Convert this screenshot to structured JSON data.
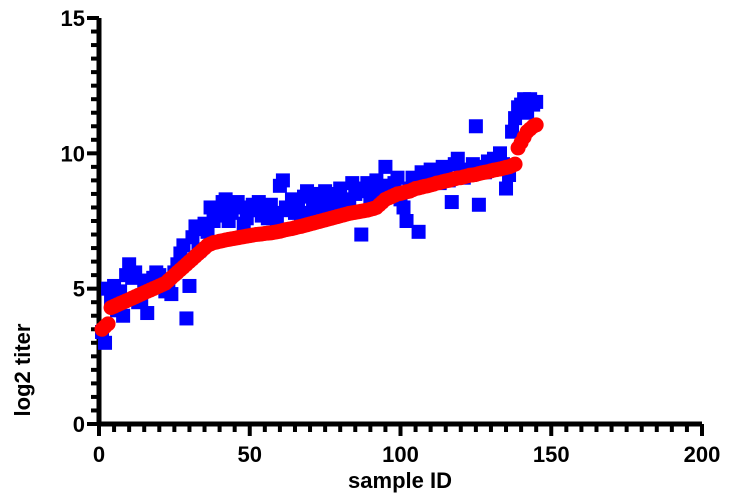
{
  "chart_data": {
    "type": "scatter",
    "title": "",
    "xlabel": "sample ID",
    "ylabel": "log2 titer",
    "xlim": [
      0,
      200
    ],
    "ylim": [
      0,
      15
    ],
    "x_ticks": [
      0,
      50,
      100,
      150,
      200
    ],
    "y_ticks": [
      0,
      5,
      10,
      15
    ],
    "x_tick_labels": [
      "0",
      "50",
      "100",
      "150",
      "200"
    ],
    "y_tick_labels": [
      "0",
      "5",
      "10",
      "15"
    ],
    "grid": false,
    "legend": "none",
    "series": [
      {
        "marker": "square",
        "color": "#0000ff",
        "x": [
          1,
          2,
          3,
          4,
          5,
          6,
          7,
          8,
          9,
          10,
          11,
          12,
          13,
          14,
          15,
          16,
          17,
          18,
          19,
          20,
          21,
          22,
          23,
          24,
          25,
          26,
          27,
          28,
          29,
          30,
          31,
          32,
          33,
          34,
          35,
          36,
          37,
          38,
          39,
          40,
          41,
          42,
          43,
          44,
          45,
          46,
          47,
          48,
          49,
          50,
          51,
          52,
          53,
          54,
          55,
          56,
          57,
          58,
          59,
          60,
          61,
          62,
          63,
          64,
          65,
          66,
          67,
          68,
          69,
          70,
          71,
          72,
          73,
          74,
          75,
          76,
          77,
          78,
          79,
          80,
          81,
          82,
          83,
          84,
          85,
          86,
          87,
          88,
          89,
          90,
          91,
          92,
          93,
          94,
          95,
          96,
          97,
          98,
          99,
          100,
          101,
          102,
          103,
          104,
          105,
          106,
          107,
          108,
          109,
          110,
          111,
          112,
          113,
          114,
          115,
          116,
          117,
          118,
          119,
          120,
          121,
          122,
          123,
          124,
          125,
          126,
          127,
          128,
          129,
          130,
          131,
          132,
          133,
          134,
          135,
          136,
          137,
          138,
          139,
          140,
          141,
          142,
          143,
          144,
          145
        ],
        "y": [
          3.4,
          3.0,
          5.0,
          4.5,
          5.1,
          4.2,
          4.9,
          4.0,
          5.5,
          5.9,
          5.4,
          5.6,
          4.5,
          4.6,
          5.3,
          4.1,
          5.2,
          5.4,
          5.6,
          5.5,
          5.1,
          4.9,
          5.3,
          4.8,
          5.6,
          5.9,
          6.3,
          6.6,
          3.9,
          5.1,
          6.9,
          7.3,
          6.4,
          7.2,
          7.4,
          7.1,
          8.0,
          7.5,
          7.7,
          7.9,
          8.2,
          8.3,
          7.5,
          7.8,
          8.1,
          8.2,
          8.0,
          7.4,
          7.6,
          7.9,
          8.1,
          7.9,
          8.2,
          7.7,
          8.0,
          7.6,
          8.1,
          7.8,
          7.5,
          8.8,
          9.0,
          8.0,
          7.9,
          8.3,
          7.8,
          8.1,
          7.6,
          8.4,
          8.6,
          7.8,
          8.0,
          8.5,
          8.3,
          8.0,
          8.6,
          8.4,
          7.9,
          8.2,
          8.5,
          8.7,
          8.1,
          8.3,
          8.0,
          8.9,
          8.5,
          8.6,
          7.0,
          8.7,
          8.9,
          8.4,
          8.6,
          9.0,
          8.7,
          8.8,
          9.5,
          8.8,
          8.6,
          8.9,
          9.1,
          8.3,
          8.0,
          7.5,
          8.7,
          9.1,
          8.9,
          7.1,
          9.3,
          9.2,
          9.0,
          9.4,
          9.1,
          9.3,
          8.9,
          9.5,
          9.2,
          9.0,
          8.2,
          9.6,
          9.8,
          9.3,
          9.1,
          9.4,
          9.2,
          9.6,
          11.0,
          8.1,
          9.5,
          9.3,
          9.7,
          9.4,
          9.8,
          9.5,
          10.0,
          9.6,
          8.7,
          9.2,
          10.8,
          11.3,
          11.7,
          11.8,
          12.0,
          11.5,
          12.0,
          11.8,
          11.9
        ],
        "name": ""
      },
      {
        "marker": "circle",
        "color": "#ff0000",
        "x": [
          1,
          2,
          3,
          4,
          5,
          6,
          7,
          8,
          9,
          10,
          11,
          12,
          13,
          14,
          15,
          16,
          17,
          18,
          19,
          20,
          21,
          22,
          23,
          24,
          25,
          26,
          27,
          28,
          29,
          30,
          31,
          32,
          33,
          34,
          35,
          36,
          37,
          38,
          39,
          40,
          41,
          42,
          43,
          44,
          45,
          46,
          47,
          48,
          49,
          50,
          51,
          52,
          53,
          54,
          55,
          56,
          57,
          58,
          59,
          60,
          61,
          62,
          63,
          64,
          65,
          66,
          67,
          68,
          69,
          70,
          71,
          72,
          73,
          74,
          75,
          76,
          77,
          78,
          79,
          80,
          81,
          82,
          83,
          84,
          85,
          86,
          87,
          88,
          89,
          90,
          91,
          92,
          93,
          94,
          95,
          96,
          97,
          98,
          99,
          100,
          101,
          102,
          103,
          104,
          105,
          106,
          107,
          108,
          109,
          110,
          111,
          112,
          113,
          114,
          115,
          116,
          117,
          118,
          119,
          120,
          121,
          122,
          123,
          124,
          125,
          126,
          127,
          128,
          129,
          130,
          131,
          132,
          133,
          134,
          135,
          136,
          137,
          138,
          139,
          140,
          141,
          142,
          143,
          144,
          145
        ],
        "y": [
          3.5,
          3.6,
          3.7,
          4.3,
          4.35,
          4.4,
          4.45,
          4.5,
          4.55,
          4.6,
          4.65,
          4.7,
          4.75,
          4.8,
          4.85,
          4.9,
          4.95,
          5.0,
          5.05,
          5.1,
          5.15,
          5.2,
          5.3,
          5.4,
          5.5,
          5.6,
          5.7,
          5.8,
          5.9,
          6.0,
          6.1,
          6.2,
          6.3,
          6.4,
          6.5,
          6.6,
          6.65,
          6.7,
          6.72,
          6.75,
          6.77,
          6.8,
          6.82,
          6.84,
          6.86,
          6.88,
          6.9,
          6.92,
          6.94,
          6.96,
          6.98,
          7.0,
          7.01,
          7.02,
          7.04,
          7.05,
          7.06,
          7.08,
          7.1,
          7.12,
          7.15,
          7.18,
          7.2,
          7.22,
          7.25,
          7.28,
          7.3,
          7.33,
          7.36,
          7.39,
          7.42,
          7.45,
          7.48,
          7.51,
          7.54,
          7.57,
          7.6,
          7.63,
          7.66,
          7.69,
          7.72,
          7.75,
          7.78,
          7.8,
          7.82,
          7.84,
          7.86,
          7.88,
          7.9,
          7.93,
          7.96,
          8.0,
          8.1,
          8.2,
          8.3,
          8.35,
          8.4,
          8.45,
          8.5,
          8.52,
          8.55,
          8.58,
          8.6,
          8.65,
          8.7,
          8.72,
          8.75,
          8.78,
          8.8,
          8.83,
          8.86,
          8.9,
          8.92,
          8.95,
          8.98,
          9.0,
          9.03,
          9.06,
          9.09,
          9.1,
          9.13,
          9.16,
          9.19,
          9.2,
          9.22,
          9.25,
          9.28,
          9.3,
          9.32,
          9.35,
          9.38,
          9.4,
          9.42,
          9.45,
          9.48,
          9.5,
          9.55,
          9.6,
          10.2,
          10.4,
          10.6,
          10.8,
          10.9,
          11.0,
          11.05
        ],
        "name": ""
      }
    ]
  }
}
